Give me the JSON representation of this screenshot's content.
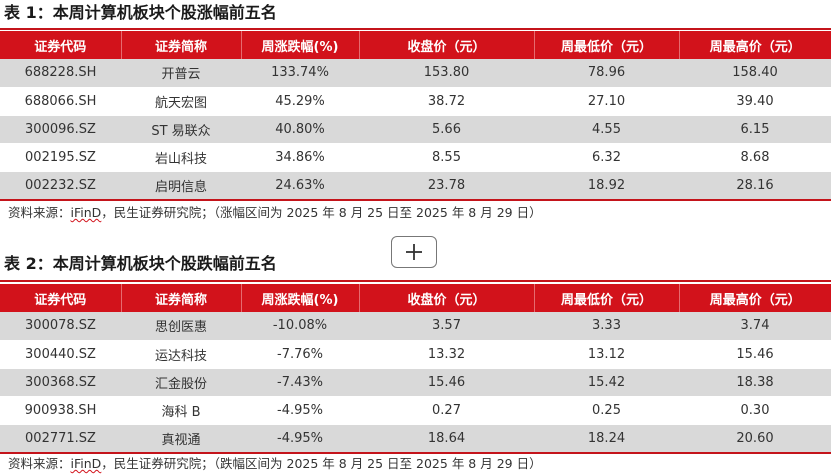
{
  "table1": {
    "title": "表 1：本周计算机板块个股涨幅前五名",
    "headers": [
      "证券代码",
      "证券简称",
      "周涨跌幅(%)",
      "收盘价（元）",
      "周最低价（元）",
      "周最高价（元）"
    ],
    "rows": [
      [
        "688228.SH",
        "开普云",
        "133.74%",
        "153.80",
        "78.96",
        "158.40"
      ],
      [
        "688066.SH",
        "航天宏图",
        "45.29%",
        "38.72",
        "27.10",
        "39.40"
      ],
      [
        "300096.SZ",
        "ST 易联众",
        "40.80%",
        "5.66",
        "4.55",
        "6.15"
      ],
      [
        "002195.SZ",
        "岩山科技",
        "34.86%",
        "8.55",
        "6.32",
        "8.68"
      ],
      [
        "002232.SZ",
        "启明信息",
        "24.63%",
        "23.78",
        "18.92",
        "28.16"
      ]
    ],
    "source_prefix": "资料来源：",
    "source_ifind": "iFinD",
    "source_rest": "，民生证券研究院；（涨幅区间为 2025 年 8 月 25 日至 2025 年 8 月 29 日）"
  },
  "table2": {
    "title": "表 2：本周计算机板块个股跌幅前五名",
    "headers": [
      "证券代码",
      "证券简称",
      "周涨跌幅(%)",
      "收盘价（元）",
      "周最低价（元）",
      "周最高价（元）"
    ],
    "rows": [
      [
        "300078.SZ",
        "思创医惠",
        "-10.08%",
        "3.57",
        "3.33",
        "3.74"
      ],
      [
        "300440.SZ",
        "运达科技",
        "-7.76%",
        "13.32",
        "13.12",
        "15.46"
      ],
      [
        "300368.SZ",
        "汇金股份",
        "-7.43%",
        "15.46",
        "15.42",
        "18.38"
      ],
      [
        "900938.SH",
        "海科 B",
        "-4.95%",
        "0.27",
        "0.25",
        "0.30"
      ],
      [
        "002771.SZ",
        "真视通",
        "-4.95%",
        "18.64",
        "18.24",
        "20.60"
      ]
    ],
    "source_prefix": "资料来源：",
    "source_ifind": "iFinD",
    "source_rest": "，民生证券研究院；（跌幅区间为 2025 年 8 月 25 日至 2025 年 8 月 29 日）"
  },
  "icons": {
    "add_button": "plus-icon"
  },
  "colors": {
    "header_red": "#d2121b",
    "stripe_gray": "#d9d9d9"
  }
}
